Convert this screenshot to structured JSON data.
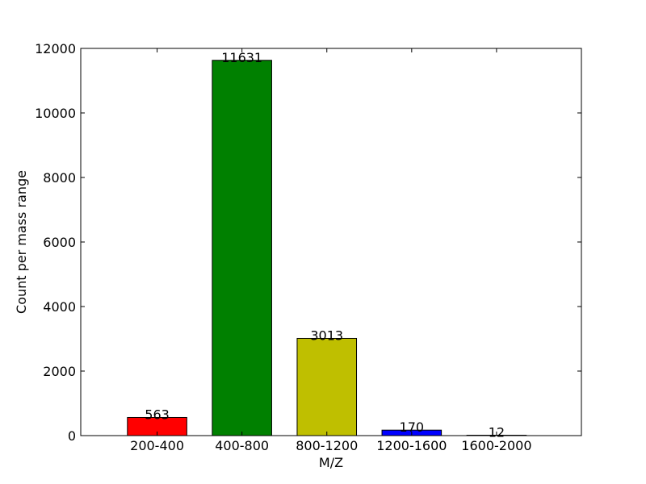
{
  "chart_data": {
    "type": "bar",
    "title": "",
    "xlabel": "M/Z",
    "ylabel": "Count per mass range",
    "categories": [
      "200-400",
      "400-800",
      "800-1200",
      "1200-1600",
      "1600-2000"
    ],
    "values": [
      563,
      11631,
      3013,
      170,
      12
    ],
    "data_labels": [
      "563",
      "11631",
      "3013",
      "170",
      "12"
    ],
    "bar_colors": [
      "#ff0000",
      "#008000",
      "#bfbf00",
      "#0000ff",
      "#ffffff"
    ],
    "ylim": [
      0,
      12000
    ],
    "yticks": [
      0,
      2000,
      4000,
      6000,
      8000,
      10000,
      12000
    ],
    "ytick_labels": [
      "0",
      "2000",
      "4000",
      "6000",
      "8000",
      "10000",
      "12000"
    ],
    "grid": false,
    "legend": "none"
  }
}
